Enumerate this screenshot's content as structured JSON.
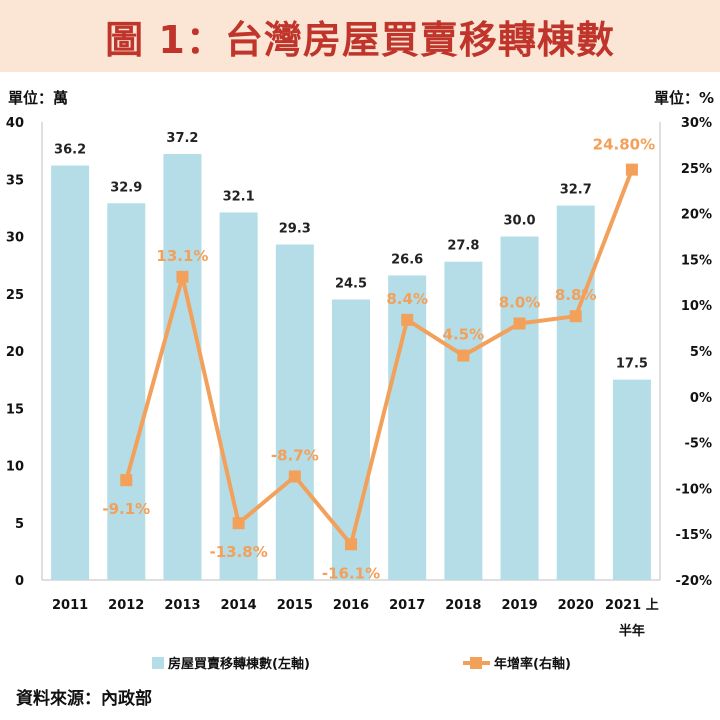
{
  "title": "圖 1：台灣房屋買賣移轉棟數",
  "source": "資料來源：內政部",
  "chart_data": {
    "type": "bar",
    "categories": [
      "2011",
      "2012",
      "2013",
      "2014",
      "2015",
      "2016",
      "2017",
      "2018",
      "2019",
      "2020",
      "2021 上半年"
    ],
    "series": [
      {
        "name": "房屋買賣移轉棟數(左軸)",
        "type": "bar",
        "axis": "left",
        "color": "#b4dde8",
        "values": [
          36.2,
          32.9,
          37.2,
          32.1,
          29.3,
          24.5,
          26.6,
          27.8,
          30.0,
          32.7,
          17.5
        ],
        "labels": [
          "36.2",
          "32.9",
          "37.2",
          "32.1",
          "29.3",
          "24.5",
          "26.6",
          "27.8",
          "30.0",
          "32.7",
          "17.5"
        ]
      },
      {
        "name": "年增率(右軸)",
        "type": "line",
        "axis": "right",
        "color": "#f2a05a",
        "values": [
          null,
          -9.1,
          13.1,
          -13.8,
          -8.7,
          -16.1,
          8.4,
          4.5,
          8.0,
          8.8,
          24.8
        ],
        "labels": [
          "",
          "-9.1%",
          "13.1%",
          "-13.8%",
          "-8.7%",
          "-16.1%",
          "8.4%",
          "4.5%",
          "8.0%",
          "8.8%",
          "24.80%"
        ]
      }
    ],
    "left_axis": {
      "unit_label": "單位：萬",
      "min": 0,
      "max": 40,
      "ticks": [
        0,
        5,
        10,
        15,
        20,
        25,
        30,
        35,
        40
      ],
      "tick_labels": [
        "0",
        "5",
        "10",
        "15",
        "20",
        "25",
        "30",
        "35",
        "40"
      ]
    },
    "right_axis": {
      "unit_label": "單位：%",
      "min": -20,
      "max": 30,
      "ticks": [
        -20,
        -15,
        -10,
        -5,
        0,
        5,
        10,
        15,
        20,
        25,
        30
      ],
      "tick_labels": [
        "-20%",
        "-15%",
        "-10%",
        "-5%",
        "0%",
        "5%",
        "10%",
        "15%",
        "20%",
        "25%",
        "30%"
      ]
    },
    "grid": false,
    "legend_position": "bottom"
  }
}
